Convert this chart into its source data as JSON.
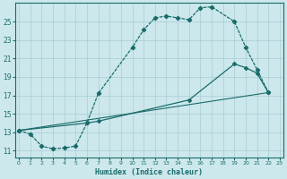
{
  "background_color": "#cce8ec",
  "grid_color": "#a8ccd4",
  "line_color": "#1a6b6b",
  "xlim": [
    -0.3,
    23.3
  ],
  "ylim": [
    10.3,
    27.0
  ],
  "yticks": [
    11,
    13,
    15,
    17,
    19,
    21,
    23,
    25
  ],
  "xticks": [
    0,
    1,
    2,
    3,
    4,
    5,
    6,
    7,
    8,
    9,
    10,
    11,
    12,
    13,
    14,
    15,
    16,
    17,
    18,
    19,
    20,
    21,
    22,
    23
  ],
  "xlabel": "Humidex (Indice chaleur)",
  "curve1_x": [
    0,
    1,
    2,
    3,
    4,
    5,
    6,
    7,
    10,
    11,
    12,
    13,
    14,
    15,
    16,
    17,
    19,
    20,
    21,
    22
  ],
  "curve1_y": [
    13.2,
    12.8,
    11.5,
    11.2,
    11.3,
    11.5,
    14.0,
    17.2,
    22.2,
    24.1,
    25.4,
    25.6,
    25.4,
    25.2,
    26.5,
    26.6,
    25.0,
    22.2,
    19.8,
    17.3
  ],
  "curve2_x": [
    0,
    6,
    7,
    15,
    19,
    20,
    21,
    22
  ],
  "curve2_y": [
    13.2,
    14.0,
    14.2,
    16.5,
    20.4,
    20.0,
    19.4,
    17.3
  ],
  "curve3_x": [
    0,
    22
  ],
  "curve3_y": [
    13.2,
    17.3
  ]
}
